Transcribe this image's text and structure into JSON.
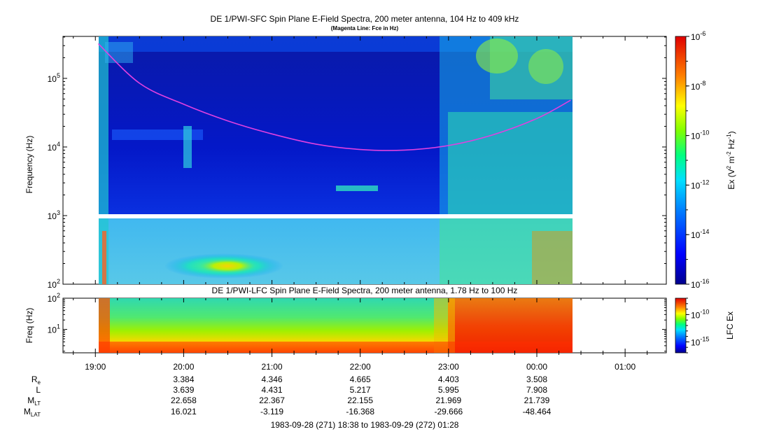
{
  "chart_data": [
    {
      "type": "heatmap",
      "title": "DE 1/PWI-SFC  Spin Plane E-Field Spectra, 200 meter antenna, 104 Hz to 409 kHz",
      "subtitle": "(Magenta Line: Fce in Hz)",
      "ylabel": "Frequency (Hz)",
      "y_scale": "log",
      "ylim": [
        100,
        409000
      ],
      "yticks": [
        {
          "value": 100,
          "base": "10",
          "exp": "2"
        },
        {
          "value": 1000,
          "base": "10",
          "exp": "3"
        },
        {
          "value": 10000,
          "base": "10",
          "exp": "4"
        },
        {
          "value": 100000,
          "base": "10",
          "exp": "5"
        }
      ],
      "data_time_range": [
        "19:00",
        "00:23"
      ],
      "gap_band_hz": [
        880,
        1000
      ],
      "colorbar": {
        "label": "Ex (V",
        "label_sup1": "2",
        "label_mid": " m",
        "label_sup2": "-2",
        "label_mid2": " Hz",
        "label_sup3": "-1",
        "label_end": ")",
        "scale": "log",
        "range": [
          1e-16,
          1e-06
        ],
        "ticks": [
          {
            "value": 1e-06,
            "base": "10",
            "exp": "-6"
          },
          {
            "value": 1e-08,
            "base": "10",
            "exp": "-8"
          },
          {
            "value": 1e-10,
            "base": "10",
            "exp": "-10"
          },
          {
            "value": 1e-12,
            "base": "10",
            "exp": "-12"
          },
          {
            "value": 1e-14,
            "base": "10",
            "exp": "-14"
          },
          {
            "value": 1e-16,
            "base": "10",
            "exp": "-16"
          }
        ]
      },
      "fce_line": {
        "color": "#e040e0",
        "time": [
          "19:02",
          "19:30",
          "20:00",
          "20:30",
          "21:00",
          "21:30",
          "22:00",
          "22:30",
          "23:00",
          "23:30",
          "00:00",
          "00:23"
        ],
        "hz": [
          320000,
          85000,
          42000,
          24000,
          15500,
          11000,
          9200,
          9000,
          10500,
          15000,
          26000,
          48000
        ]
      }
    },
    {
      "type": "heatmap",
      "title": "DE 1/PWI-LFC  Spin Plane E-Field Spectra, 200 meter antenna, 1.78 Hz to 100 Hz",
      "ylabel": "Freq (Hz)",
      "y_scale": "log",
      "ylim": [
        1.78,
        100
      ],
      "yticks": [
        {
          "value": 10,
          "base": "10",
          "exp": "1"
        },
        {
          "value": 100,
          "base": "10",
          "exp": "2"
        }
      ],
      "data_time_range": [
        "19:00",
        "00:23"
      ],
      "colorbar": {
        "label": "LFC Ex",
        "scale": "log",
        "range": [
          1e-17,
          1e-07
        ],
        "ticks": [
          {
            "value": 1e-10,
            "base": "10",
            "exp": "-10"
          },
          {
            "value": 1e-15,
            "base": "10",
            "exp": "-15"
          }
        ]
      }
    }
  ],
  "x_axis": {
    "ticks": [
      "19:00",
      "20:00",
      "21:00",
      "22:00",
      "23:00",
      "00:00",
      "01:00"
    ],
    "range": [
      "18:38",
      "01:28"
    ]
  },
  "ephemeris": {
    "rows": [
      {
        "label": "R",
        "sub": "e",
        "values": [
          "3.384",
          "4.346",
          "4.665",
          "4.403",
          "3.508"
        ]
      },
      {
        "label": "L",
        "sub": "",
        "values": [
          "3.639",
          "4.431",
          "5.217",
          "5.995",
          "7.908"
        ]
      },
      {
        "label": "M",
        "sub": "LT",
        "values": [
          "22.658",
          "22.367",
          "22.155",
          "21.969",
          "21.739"
        ]
      },
      {
        "label": "M",
        "sub": "LAT",
        "values": [
          "16.021",
          "-3.119",
          "-16.368",
          "-29.666",
          "-48.464"
        ]
      }
    ],
    "columns_at": [
      "20:00",
      "21:00",
      "22:00",
      "23:00",
      "00:00"
    ]
  },
  "footer": {
    "time_range": "1983-09-28 (271) 18:38 to 1983-09-29 (272) 01:28"
  }
}
